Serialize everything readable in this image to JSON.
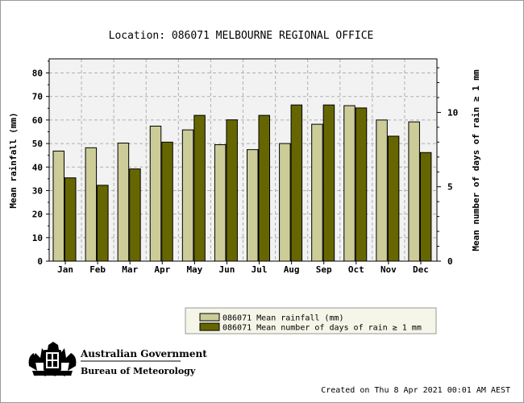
{
  "chart_data": {
    "type": "bar",
    "title": "Location: 086071 MELBOURNE REGIONAL OFFICE",
    "categories": [
      "Jan",
      "Feb",
      "Mar",
      "Apr",
      "May",
      "Jun",
      "Jul",
      "Aug",
      "Sep",
      "Oct",
      "Nov",
      "Dec"
    ],
    "series": [
      {
        "name": "086071 Mean rainfall (mm)",
        "axis": "left",
        "color": "#cccc99",
        "values": [
          46.8,
          48.2,
          50.2,
          57.4,
          55.8,
          49.5,
          47.4,
          50.0,
          58.2,
          66.1,
          60.0,
          59.2
        ]
      },
      {
        "name": "086071 Mean number of days of rain ≥ 1 mm",
        "axis": "right",
        "color": "#666600",
        "values": [
          5.6,
          5.1,
          6.2,
          8.0,
          9.8,
          9.5,
          9.8,
          10.5,
          10.5,
          10.3,
          8.4,
          7.3
        ]
      }
    ],
    "ylabel": "Mean rainfall (mm)",
    "ylabel_right": "Mean number of days of rain ≥ 1 mm",
    "ylim": [
      0,
      86
    ],
    "ylim_right": [
      0,
      13.6
    ],
    "yticks": [
      0,
      10,
      20,
      30,
      40,
      50,
      60,
      70,
      80
    ],
    "yticks_right": [
      0,
      5,
      10
    ],
    "grid": true,
    "legend_position": "bottom-right"
  },
  "branding": {
    "line1": "Australian Government",
    "line2": "Bureau of Meteorology"
  },
  "footer": {
    "created": "Created on Thu  8 Apr 2021 00:01 AM AEST"
  },
  "colors": {
    "plot_background": "#f2f2f2",
    "grid": "#b0b0b0"
  }
}
